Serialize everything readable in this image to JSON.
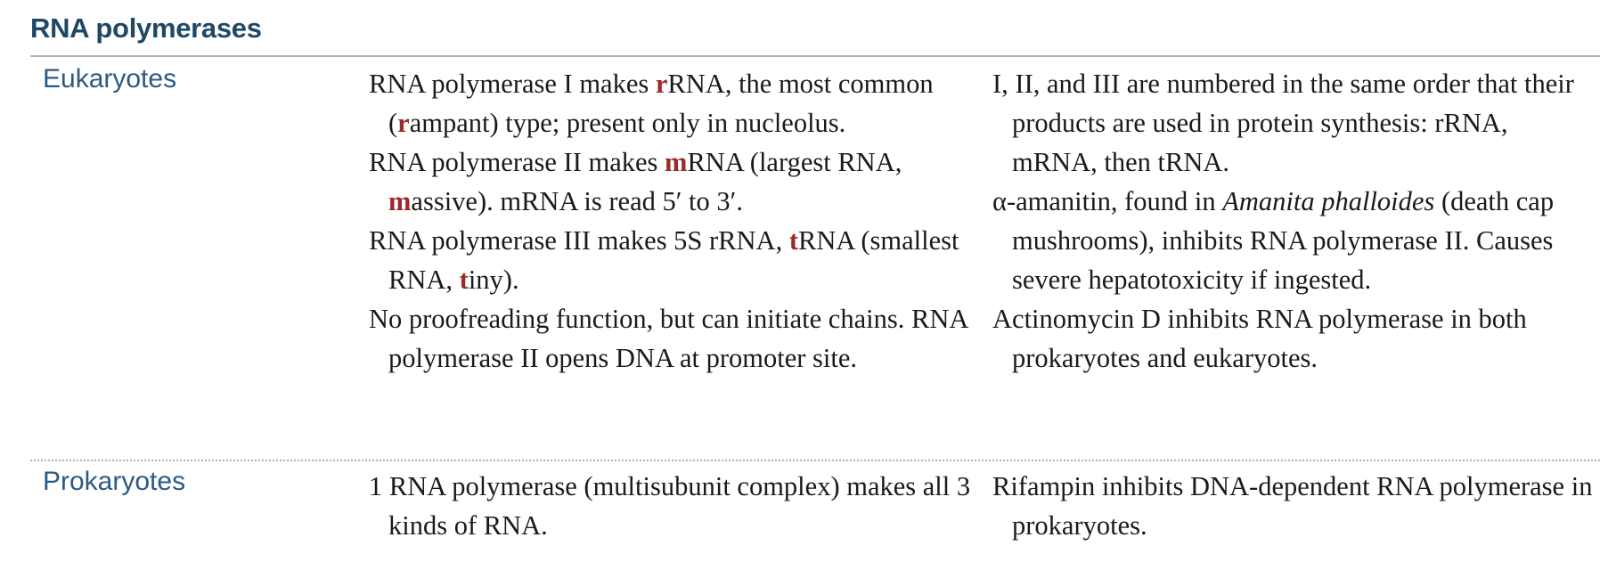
{
  "title": "RNA polymerases",
  "rows": [
    {
      "label": "Eukaryotes",
      "col1": [
        {
          "segments": [
            "RNA polymerase I makes ",
            "r",
            "RNA, the most common (",
            "r",
            "ampant) type; present only in nucleolus."
          ]
        },
        {
          "segments": [
            "RNA polymerase II makes ",
            "m",
            "RNA (largest RNA, ",
            "m",
            "assive). mRNA is read 5′ to 3′."
          ]
        },
        {
          "segments": [
            "RNA polymerase III makes 5S rRNA, ",
            "t",
            "RNA (smallest RNA, ",
            "t",
            "iny)."
          ]
        },
        {
          "segments": [
            "No proofreading function, but can initiate chains. RNA polymerase II opens DNA at promoter site."
          ]
        }
      ],
      "col2": [
        {
          "segments": [
            "I, II, and III are numbered in the same order that their products are used in protein synthesis: rRNA, mRNA, then tRNA."
          ]
        },
        {
          "segments": [
            "α-amanitin, found in ",
            "Amanita phalloides",
            " (death cap mushrooms), inhibits RNA polymerase II. Causes severe hepatotoxicity if ingested."
          ]
        },
        {
          "segments": [
            "Actinomycin D inhibits RNA polymerase in both prokaryotes and eukaryotes."
          ]
        }
      ]
    },
    {
      "label": "Prokaryotes",
      "col1": [
        {
          "segments": [
            "1 RNA polymerase (multisubunit complex) makes all 3 kinds of RNA."
          ]
        }
      ],
      "col2": [
        {
          "segments": [
            "Rifampin inhibits DNA-dependent RNA polymerase in prokaryotes."
          ]
        }
      ]
    }
  ]
}
